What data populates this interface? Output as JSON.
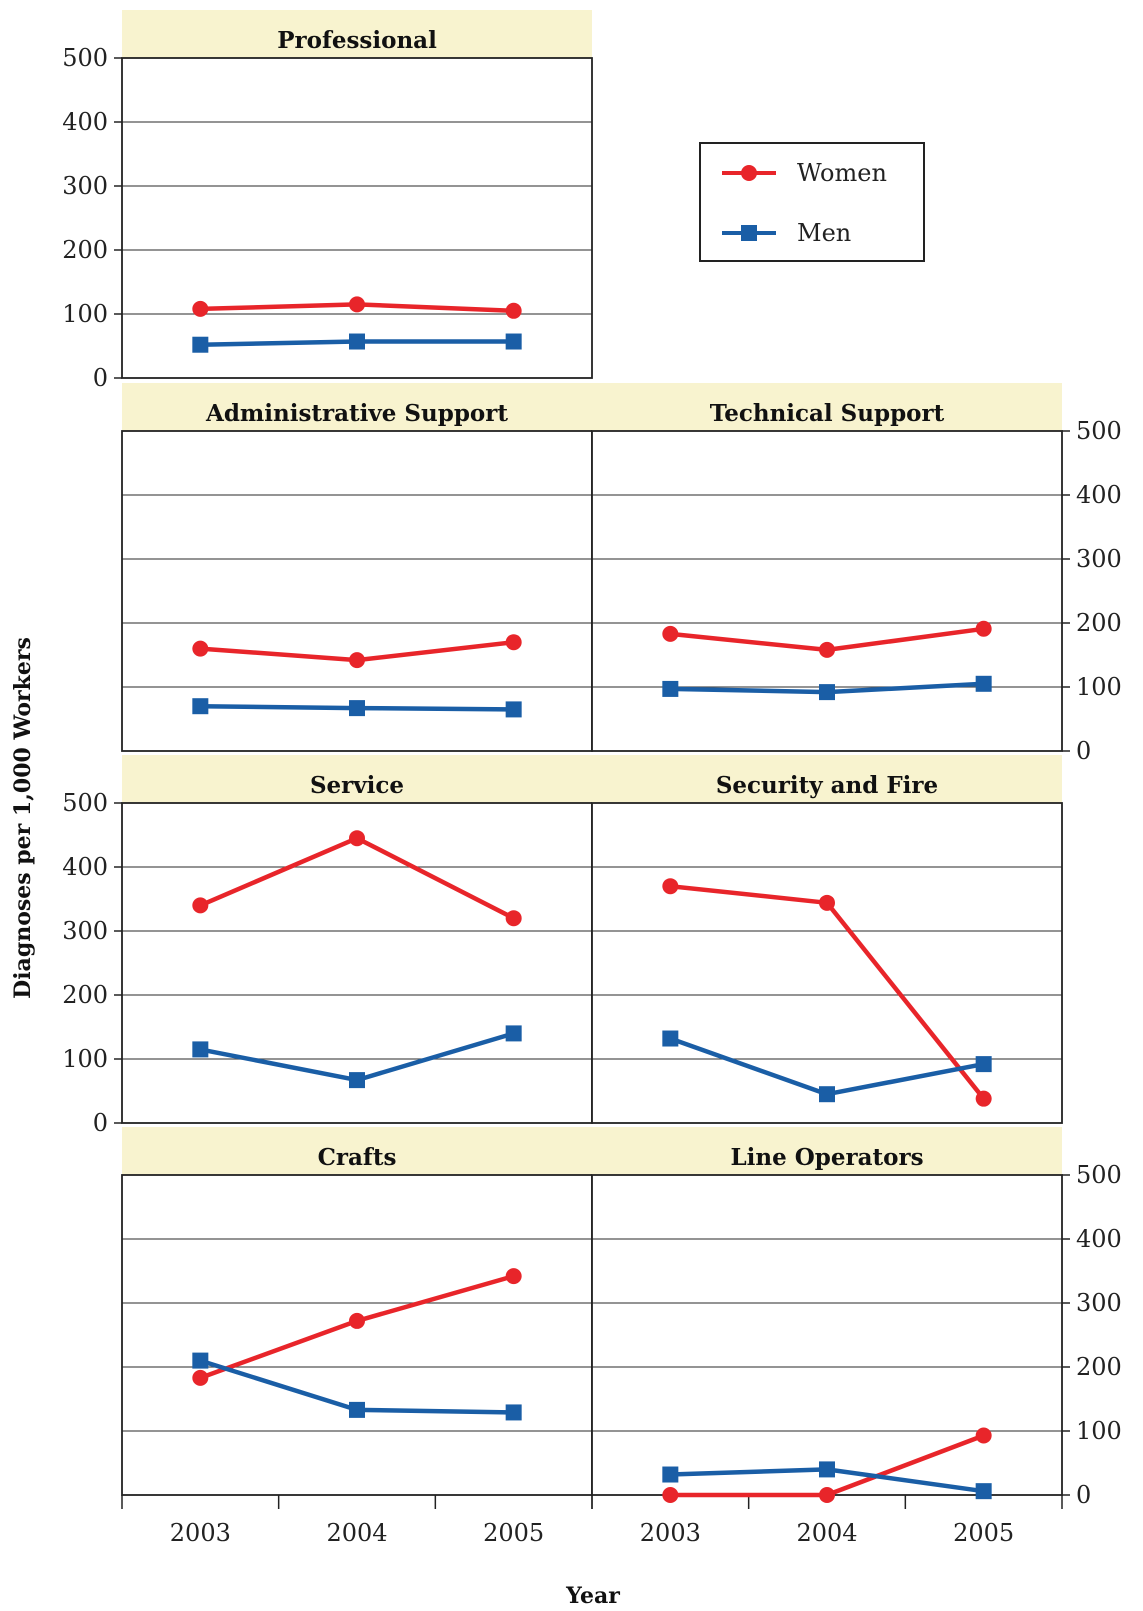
{
  "chart_data": {
    "type": "line",
    "ylabel": "Diagnoses per 1,000 Workers",
    "xlabel": "Year",
    "x": [
      "2003",
      "2004",
      "2005"
    ],
    "ylim": [
      0,
      500
    ],
    "yticks": [
      0,
      100,
      200,
      300,
      400,
      500
    ],
    "grid": true,
    "legend": {
      "placement": "top-right",
      "entries": [
        "Women",
        "Men"
      ]
    },
    "colors": {
      "Women": "#e8252a",
      "Men": "#1a5ea6"
    },
    "panels": [
      {
        "title": "Professional",
        "series": [
          {
            "name": "Women",
            "values": [
              108,
              115,
              105
            ]
          },
          {
            "name": "Men",
            "values": [
              52,
              57,
              57
            ]
          }
        ]
      },
      {
        "title": "Administrative Support",
        "series": [
          {
            "name": "Women",
            "values": [
              160,
              142,
              170
            ]
          },
          {
            "name": "Men",
            "values": [
              70,
              67,
              65
            ]
          }
        ]
      },
      {
        "title": "Technical Support",
        "series": [
          {
            "name": "Women",
            "values": [
              183,
              158,
              191
            ]
          },
          {
            "name": "Men",
            "values": [
              97,
              92,
              105
            ]
          }
        ]
      },
      {
        "title": "Service",
        "series": [
          {
            "name": "Women",
            "values": [
              340,
              445,
              320
            ]
          },
          {
            "name": "Men",
            "values": [
              115,
              67,
              140
            ]
          }
        ]
      },
      {
        "title": "Security and Fire",
        "series": [
          {
            "name": "Women",
            "values": [
              370,
              344,
              38
            ]
          },
          {
            "name": "Men",
            "values": [
              132,
              45,
              92
            ]
          }
        ]
      },
      {
        "title": "Crafts",
        "series": [
          {
            "name": "Women",
            "values": [
              183,
              272,
              342
            ]
          },
          {
            "name": "Men",
            "values": [
              210,
              133,
              129
            ]
          }
        ]
      },
      {
        "title": "Line Operators",
        "series": [
          {
            "name": "Women",
            "values": [
              0,
              0,
              93
            ]
          },
          {
            "name": "Men",
            "values": [
              32,
              40,
              6
            ]
          }
        ]
      }
    ]
  }
}
